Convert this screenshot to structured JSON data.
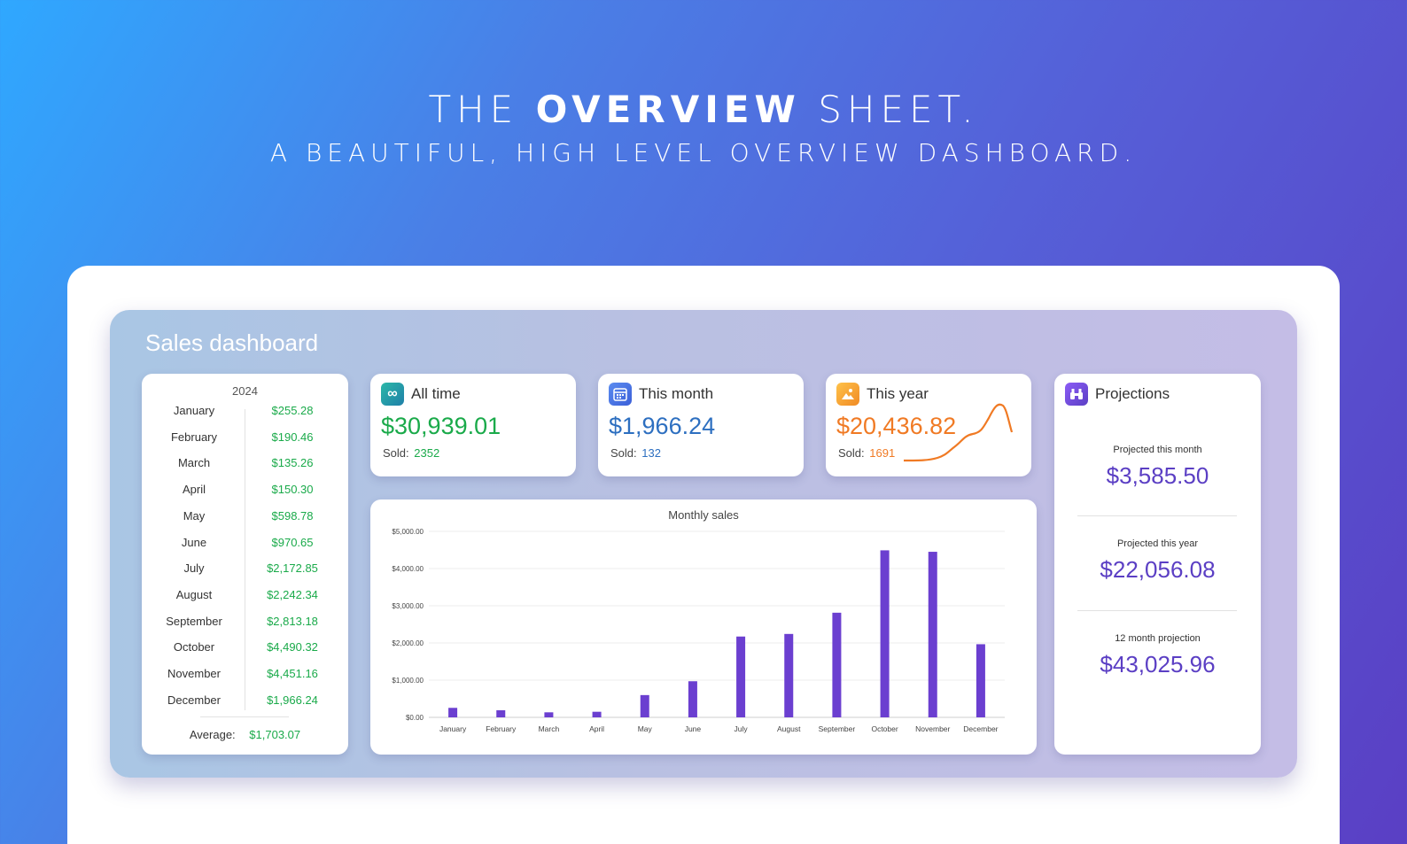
{
  "hero": {
    "title_pre": "THE",
    "title_bold": "OVERVIEW",
    "title_post": "SHEET.",
    "subtitle": "A BEAUTIFUL, HIGH LEVEL OVERVIEW DASHBOARD."
  },
  "dashboard": {
    "title": "Sales dashboard",
    "year": "2024",
    "months": [
      {
        "name": "January",
        "value": "$255.28"
      },
      {
        "name": "February",
        "value": "$190.46"
      },
      {
        "name": "March",
        "value": "$135.26"
      },
      {
        "name": "April",
        "value": "$150.30"
      },
      {
        "name": "May",
        "value": "$598.78"
      },
      {
        "name": "June",
        "value": "$970.65"
      },
      {
        "name": "July",
        "value": "$2,172.85"
      },
      {
        "name": "August",
        "value": "$2,242.34"
      },
      {
        "name": "September",
        "value": "$2,813.18"
      },
      {
        "name": "October",
        "value": "$4,490.32"
      },
      {
        "name": "November",
        "value": "$4,451.16"
      },
      {
        "name": "December",
        "value": "$1,966.24"
      }
    ],
    "average_label": "Average:",
    "average_value": "$1,703.07"
  },
  "kpis": {
    "all_time": {
      "label": "All time",
      "value": "$30,939.01",
      "sold_label": "Sold:",
      "sold_value": "2352",
      "icon": "infinity-icon",
      "color": "#1aaa4a"
    },
    "this_month": {
      "label": "This month",
      "value": "$1,966.24",
      "sold_label": "Sold:",
      "sold_value": "132",
      "icon": "calendar-icon",
      "color": "#2d6fc0"
    },
    "this_year": {
      "label": "This year",
      "value": "$20,436.82",
      "sold_label": "Sold:",
      "sold_value": "1691",
      "icon": "image-icon",
      "color": "#f07a24"
    }
  },
  "projections": {
    "label": "Projections",
    "icon": "binoculars-icon",
    "items": [
      {
        "label": "Projected this month",
        "value": "$3,585.50"
      },
      {
        "label": "Projected this year",
        "value": "$22,056.08"
      },
      {
        "label": "12 month projection",
        "value": "$43,025.96"
      }
    ]
  },
  "chart_data": {
    "type": "bar",
    "title": "Monthly sales",
    "categories": [
      "January",
      "February",
      "March",
      "April",
      "May",
      "June",
      "July",
      "August",
      "September",
      "October",
      "November",
      "December"
    ],
    "values": [
      255.28,
      190.46,
      135.26,
      150.3,
      598.78,
      970.65,
      2172.85,
      2242.34,
      2813.18,
      4490.32,
      4451.16,
      1966.24
    ],
    "yticks": [
      "$0.00",
      "$1,000.00",
      "$2,000.00",
      "$3,000.00",
      "$4,000.00",
      "$5,000.00"
    ],
    "ylim": [
      0,
      5000
    ],
    "grid": true,
    "bar_color": "#6b3fd0"
  }
}
